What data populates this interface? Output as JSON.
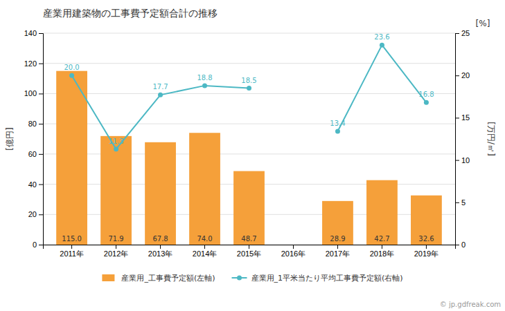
{
  "chart_data": {
    "type": "bar",
    "title": "産業用建築物の工事費予定額合計の推移",
    "categories": [
      "2011年",
      "2012年",
      "2013年",
      "2014年",
      "2015年",
      "2016年",
      "2017年",
      "2018年",
      "2019年"
    ],
    "series": [
      {
        "name": "産業用_工事費予定額(左軸)",
        "type": "bar",
        "color": "#F5A03A",
        "values": [
          115.0,
          71.9,
          67.8,
          74.0,
          48.7,
          0,
          28.9,
          42.7,
          32.6
        ],
        "value_labels": [
          "115.0",
          "71.9",
          "67.8",
          "74.0",
          "48.7",
          null,
          "28.9",
          "42.7",
          "32.6"
        ]
      },
      {
        "name": "産業用_1平米当たり平均工事費予定額(右軸)",
        "type": "line",
        "axis": "y2",
        "color": "#4CB8C4",
        "marker": "circle",
        "values": [
          20.0,
          11.3,
          17.7,
          18.8,
          18.5,
          null,
          13.4,
          23.6,
          16.8
        ],
        "value_labels": [
          "20.0",
          "11.3",
          "17.7",
          "18.8",
          "18.5",
          null,
          "13.4",
          "23.6",
          "16.8"
        ]
      }
    ],
    "ylabel": "[億円]",
    "y2label": "[万円/㎡]",
    "annotations": [
      "[%]",
      "© jp.gdfreak.com"
    ],
    "ylim": [
      0,
      140
    ],
    "yticks": [
      0,
      20,
      40,
      60,
      80,
      100,
      120,
      140
    ],
    "y2lim": [
      0,
      25.0
    ],
    "y2ticks": [
      0.0,
      5.0,
      10.0,
      15.0,
      20.0,
      25.0
    ],
    "grid": true,
    "legend": "bottom",
    "data_labels": true
  }
}
